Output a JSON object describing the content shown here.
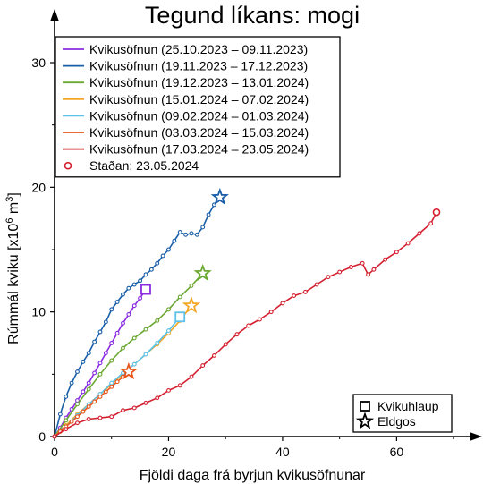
{
  "chart_data": {
    "type": "line",
    "title": "Tegund líkans: mogi",
    "xlabel": "Fjöldi daga frá byrjun kvikusöfnunar",
    "ylabel_main": "Rúmmál kviku [x10",
    "ylabel_exp": "6",
    "ylabel_unit": " m",
    "ylabel_unit_exp": "3",
    "ylabel_close": "]",
    "xlim": [
      0,
      72
    ],
    "ylim": [
      0,
      32
    ],
    "xticks": [
      0,
      20,
      40,
      60
    ],
    "yticks": [
      0,
      10,
      20,
      30
    ],
    "legend_position": "top-left",
    "series": [
      {
        "name": "Kvikusöfnun (25.10.2023 – 09.11.2023)",
        "color": "#8a2be2",
        "marker_end": "square",
        "x": [
          0,
          1,
          2,
          3,
          4,
          5,
          6,
          7,
          8,
          9,
          10,
          11,
          12,
          13,
          14,
          15,
          16
        ],
        "y": [
          0,
          0.7,
          1.5,
          2.2,
          2.9,
          3.6,
          4.3,
          5.1,
          5.9,
          6.7,
          7.5,
          8.3,
          9.1,
          9.8,
          10.5,
          11.1,
          11.8
        ]
      },
      {
        "name": "Kvikusöfnun (19.11.2023 – 17.12.2023)",
        "color": "#1a5fa8",
        "marker_end": "star",
        "x": [
          0,
          1,
          2,
          3,
          4,
          5,
          6,
          7,
          8,
          9,
          10,
          11,
          12,
          13,
          14,
          15,
          16,
          17,
          18,
          19,
          20,
          21,
          22,
          23,
          24,
          25,
          26,
          27,
          28,
          29
        ],
        "y": [
          0,
          1.8,
          3.2,
          4.3,
          5.2,
          6.0,
          6.7,
          7.6,
          8.4,
          9.2,
          10.2,
          10.8,
          11.4,
          11.9,
          12.2,
          12.5,
          13.0,
          13.4,
          13.9,
          14.5,
          15.0,
          15.7,
          16.4,
          16.2,
          16.3,
          16.2,
          16.8,
          17.8,
          18.6,
          19.2
        ]
      },
      {
        "name": "Kvikusöfnun (19.12.2023 – 13.01.2024)",
        "color": "#6aa832",
        "marker_end": "star",
        "x": [
          0,
          2,
          4,
          6,
          8,
          10,
          12,
          14,
          16,
          18,
          20,
          22,
          24,
          26
        ],
        "y": [
          0,
          1.3,
          2.6,
          3.8,
          5.0,
          6.1,
          7.1,
          7.9,
          8.6,
          9.3,
          10.2,
          11.2,
          12.1,
          13.1
        ]
      },
      {
        "name": "Kvikusöfnun (15.01.2024 – 07.02.2024)",
        "color": "#f5a623",
        "marker_end": "star",
        "x": [
          0,
          2,
          4,
          6,
          8,
          10,
          12,
          14,
          16,
          18,
          20,
          22,
          24
        ],
        "y": [
          0,
          0.9,
          1.8,
          2.6,
          3.4,
          4.2,
          5.0,
          5.8,
          6.6,
          7.4,
          8.3,
          9.3,
          10.5
        ]
      },
      {
        "name": "Kvikusöfnun (09.02.2024 – 01.03.2024)",
        "color": "#5cc2e8",
        "marker_end": "square",
        "x": [
          0,
          2,
          4,
          6,
          8,
          10,
          12,
          14,
          16,
          18,
          20,
          22
        ],
        "y": [
          0,
          0.8,
          1.7,
          2.6,
          3.4,
          4.3,
          5.1,
          5.8,
          6.6,
          7.5,
          8.5,
          9.6
        ]
      },
      {
        "name": "Kvikusöfnun (03.03.2024 – 15.03.2024)",
        "color": "#e8561c",
        "marker_end": "star",
        "x": [
          0,
          1,
          2,
          3,
          4,
          5,
          6,
          7,
          8,
          9,
          10,
          11,
          12,
          13
        ],
        "y": [
          0,
          0.4,
          0.8,
          1.2,
          1.6,
          2.0,
          2.4,
          2.8,
          3.2,
          3.6,
          4.0,
          4.4,
          4.8,
          5.2
        ]
      },
      {
        "name": "Kvikusöfnun (17.03.2024 – 23.05.2024)",
        "color": "#d42030",
        "marker_end": "circle",
        "x": [
          0,
          2,
          4,
          6,
          8,
          10,
          12,
          14,
          16,
          18,
          20,
          22,
          24,
          26,
          28,
          30,
          32,
          34,
          36,
          38,
          40,
          42,
          44,
          46,
          48,
          50,
          52,
          54,
          55,
          56,
          58,
          60,
          62,
          64,
          66,
          67
        ],
        "y": [
          0,
          0.6,
          1.1,
          1.4,
          1.5,
          1.6,
          2.1,
          2.3,
          2.7,
          3.1,
          3.7,
          4.1,
          4.8,
          5.7,
          6.5,
          7.4,
          8.2,
          8.9,
          9.4,
          10.0,
          10.7,
          11.3,
          11.6,
          12.2,
          12.8,
          13.2,
          13.6,
          13.9,
          13.0,
          13.4,
          14.2,
          14.8,
          15.5,
          16.3,
          17.1,
          18.0
        ]
      }
    ],
    "extra_legend": [
      {
        "name": "Staðan: 23.05.2024",
        "marker": "circle",
        "color": "#d42030"
      }
    ],
    "symbol_legend": [
      {
        "name": "Kvikuhlaup",
        "marker": "square"
      },
      {
        "name": "Eldgos",
        "marker": "star"
      }
    ]
  }
}
